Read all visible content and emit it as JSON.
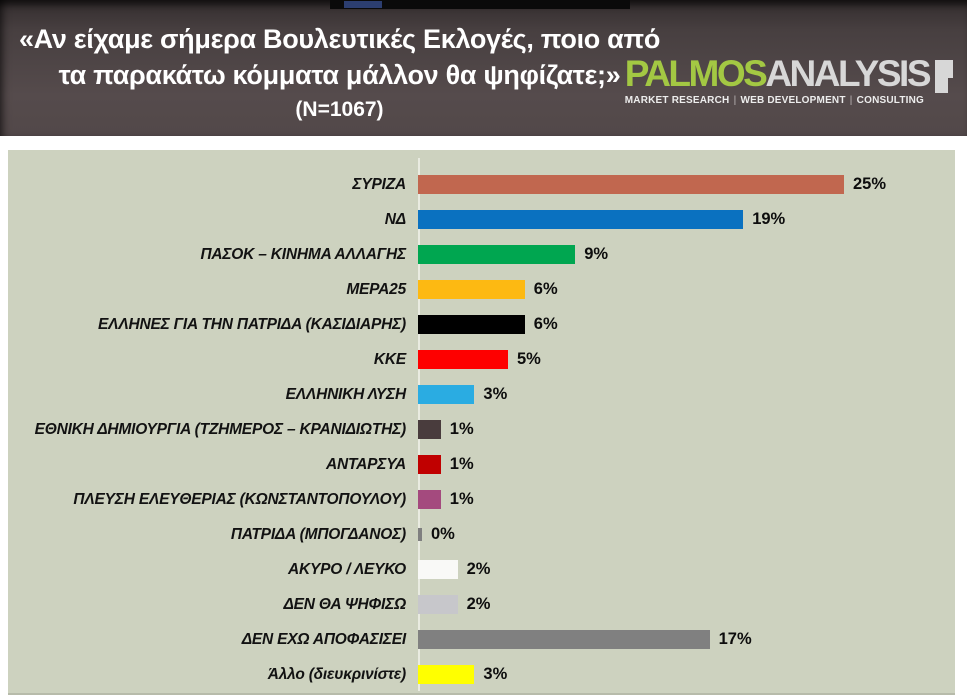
{
  "header": {
    "title_line1": "«Αν είχαμε σήμερα Βουλευτικές Εκλογές, ποιο από",
    "title_line2": "τα παρακάτω κόμματα μάλλον θα ψηφίζατε;»",
    "sample_size": "(N=1067)",
    "logo": {
      "brand_primary": "PALMOS",
      "brand_secondary": "ANALYSIS",
      "brand_primary_color": "#a3c843",
      "brand_secondary_color": "#d7d7d7",
      "tagline_item1": "MARKET RESEARCH",
      "tagline_item2": "WEB DEVELOPMENT",
      "tagline_item3": "CONSULTING"
    }
  },
  "chart_data": {
    "type": "bar",
    "orientation": "horizontal",
    "title": "«Αν είχαμε σήμερα Βουλευτικές Εκλογές, ποιο από τα παρακάτω κόμματα μάλλον θα ψηφίζατε;» (N=1067)",
    "xlabel": "",
    "ylabel": "",
    "xlim": [
      0,
      25
    ],
    "grid": false,
    "legend": false,
    "background_color": "#cdd2bf",
    "series": [
      {
        "label": "ΣΥΡΙΖΑ",
        "value": 25,
        "display": "25%",
        "color": "#c1674f"
      },
      {
        "label": "ΝΔ",
        "value": 19,
        "display": "19%",
        "color": "#0a71c0"
      },
      {
        "label": "ΠΑΣΟΚ – ΚΙΝΗΜΑ ΑΛΛΑΓΗΣ",
        "value": 9,
        "display": "9%",
        "color": "#00a650"
      },
      {
        "label": "ΜΕΡΑ25",
        "value": 6,
        "display": "6%",
        "color": "#fdb912"
      },
      {
        "label": "ΕΛΛΗΝΕΣ ΓΙΑ ΤΗΝ ΠΑΤΡΙΔΑ (ΚΑΣΙΔΙΑΡΗΣ)",
        "value": 6,
        "display": "6%",
        "color": "#000000"
      },
      {
        "label": "ΚΚΕ",
        "value": 5,
        "display": "5%",
        "color": "#fe0000"
      },
      {
        "label": "ΕΛΛΗΝΙΚΗ ΛΥΣΗ",
        "value": 3,
        "display": "3%",
        "color": "#2aace2"
      },
      {
        "label": "ΕΘΝΙΚΗ ΔΗΜΙΟΥΡΓΙΑ (ΤΖΗΜΕΡΟΣ – ΚΡΑΝΙΔΙΩΤΗΣ)",
        "value": 1,
        "display": "1%",
        "color": "#493c3d"
      },
      {
        "label": "ΑΝΤΑΡΣΥΑ",
        "value": 1,
        "display": "1%",
        "color": "#c00000"
      },
      {
        "label": "ΠΛΕΥΣΗ ΕΛΕΥΘΕΡΙΑΣ (ΚΩΝΣΤΑΝΤΟΠΟΥΛΟΥ)",
        "value": 1,
        "display": "1%",
        "color": "#a44a7e"
      },
      {
        "label": "ΠΑΤΡΙΔΑ (ΜΠΟΓΔΑΝΟΣ)",
        "value": 0,
        "display": "0%",
        "color": "#7f7f7f"
      },
      {
        "label": "ΑΚΥΡΟ / ΛΕΥΚΟ",
        "value": 2,
        "display": "2%",
        "color": "#f9f9f7"
      },
      {
        "label": "ΔΕΝ ΘΑ ΨΗΦΙΣΩ",
        "value": 2,
        "display": "2%",
        "color": "#c7c7cb"
      },
      {
        "label": "ΔΕΝ ΕΧΩ ΑΠΟΦΑΣΙΣΕΙ",
        "value": 17,
        "display": "17%",
        "color": "#808080"
      },
      {
        "label": "Άλλο (διευκρινίστε)",
        "value": 3,
        "display": "3%",
        "color": "#ffff00"
      }
    ]
  }
}
